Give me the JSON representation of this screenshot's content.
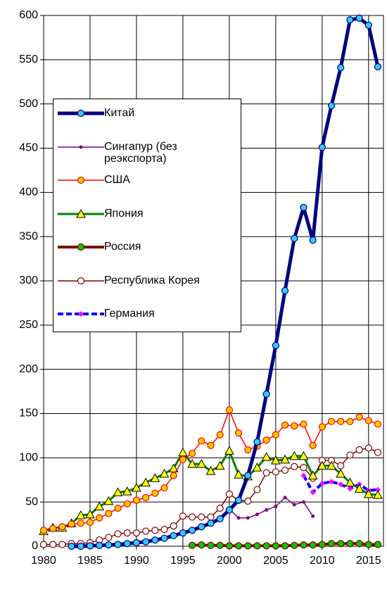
{
  "chart_data": {
    "type": "line",
    "x": [
      1980,
      1981,
      1982,
      1983,
      1984,
      1985,
      1986,
      1987,
      1988,
      1989,
      1990,
      1991,
      1992,
      1993,
      1994,
      1995,
      1996,
      1997,
      1998,
      1999,
      2000,
      2001,
      2002,
      2003,
      2004,
      2005,
      2006,
      2007,
      2008,
      2009,
      2010,
      2011,
      2012,
      2013,
      2014,
      2015,
      2016
    ],
    "xlim": [
      1980,
      2016
    ],
    "xticks": [
      1980,
      1985,
      1990,
      1995,
      2000,
      2005,
      2010,
      2015
    ],
    "ylim": [
      0,
      600
    ],
    "yticks": [
      0,
      50,
      100,
      150,
      200,
      250,
      300,
      350,
      400,
      450,
      500,
      550,
      600
    ],
    "grid": true,
    "series": [
      {
        "name": "Китай",
        "color": "#000080",
        "line_width": 5,
        "marker": "circle",
        "marker_color": "#33ccff",
        "values": [
          null,
          null,
          null,
          0,
          0,
          0.5,
          1,
          1.5,
          2,
          3,
          4,
          5,
          7,
          9,
          12,
          15,
          18,
          22,
          26,
          31,
          41,
          52,
          80,
          118,
          172,
          227,
          289,
          348,
          383,
          346,
          451,
          498,
          541,
          595,
          597,
          589,
          542
        ]
      },
      {
        "name": "Сингапур (без реэкспорта)",
        "color": "#800080",
        "line_width": 1.5,
        "marker": "dot",
        "marker_color": "#800080",
        "values": [
          null,
          null,
          null,
          null,
          null,
          null,
          null,
          null,
          null,
          null,
          null,
          null,
          null,
          null,
          null,
          null,
          null,
          null,
          null,
          null,
          42,
          32,
          32,
          36,
          41,
          45,
          55,
          47,
          50,
          34,
          null,
          null,
          null,
          null,
          null,
          null,
          null
        ]
      },
      {
        "name": "США",
        "color": "#ff0000",
        "line_width": 1.5,
        "marker": "circle",
        "marker_color": "#ffcc00",
        "values": [
          18,
          20,
          22,
          25,
          26,
          27,
          32,
          37,
          43,
          48,
          52,
          55,
          60,
          66,
          80,
          98,
          105,
          119,
          114,
          126,
          154,
          128,
          109,
          113,
          120,
          126,
          137,
          136,
          138,
          114,
          135,
          141,
          141,
          141,
          146,
          142,
          138
        ]
      },
      {
        "name": "Япония",
        "color": "#008000",
        "line_width": 3,
        "marker": "triangle",
        "marker_color": "#ffff00",
        "values": [
          17,
          21,
          21,
          26,
          35,
          36,
          45,
          51,
          61,
          62,
          66,
          72,
          77,
          82,
          88,
          106,
          93,
          93,
          85,
          91,
          108,
          81,
          79,
          89,
          101,
          97,
          98,
          102,
          102,
          80,
          91,
          91,
          82,
          72,
          65,
          59,
          58
        ]
      },
      {
        "name": "Россия",
        "color": "#800000",
        "line_width": 4,
        "marker": "circle",
        "marker_color": "#00cc00",
        "values": [
          null,
          null,
          null,
          null,
          null,
          null,
          null,
          null,
          null,
          null,
          null,
          null,
          null,
          null,
          null,
          null,
          1,
          1.5,
          1,
          1,
          0.5,
          0.5,
          0.5,
          0.5,
          0.5,
          0.5,
          0.5,
          1,
          1.5,
          1.5,
          2,
          3,
          3,
          3,
          3,
          2,
          2
        ]
      },
      {
        "name": "Республика Корея",
        "color": "#800000",
        "line_width": 1.5,
        "marker": "circle",
        "marker_color": "#ffffff",
        "values": [
          2,
          2,
          2,
          3,
          3,
          4,
          7,
          10,
          14,
          15,
          15,
          17,
          18,
          19,
          23,
          34,
          33,
          33,
          33,
          43,
          59,
          52,
          51,
          64,
          83,
          84,
          86,
          90,
          89,
          77,
          97,
          97,
          91,
          103,
          109,
          111,
          106
        ]
      },
      {
        "name": "Германия",
        "color": "#0000ff",
        "line_width": 4,
        "dashed": true,
        "marker": "diamond",
        "marker_color": "#ff00ff",
        "values": [
          null,
          null,
          null,
          null,
          null,
          null,
          null,
          null,
          null,
          null,
          null,
          null,
          null,
          null,
          null,
          null,
          null,
          null,
          null,
          null,
          null,
          null,
          null,
          null,
          null,
          null,
          null,
          null,
          80,
          61,
          71,
          73,
          70,
          65,
          70,
          63,
          64
        ]
      }
    ]
  }
}
